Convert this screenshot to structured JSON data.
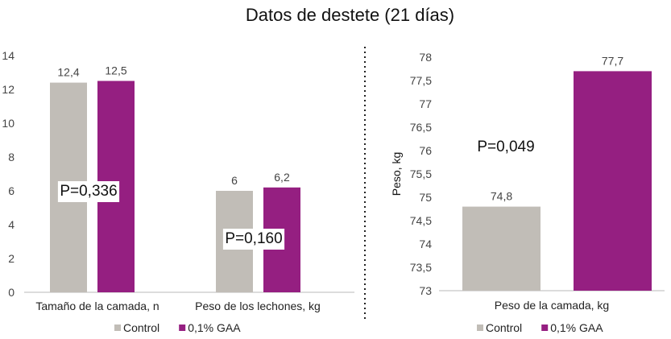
{
  "title": "Datos de destete (21 días)",
  "colors": {
    "control": "#c1bdb7",
    "gaa": "#951f81",
    "axis": "#b9b9b9",
    "divider": "#222222"
  },
  "chart_data": [
    {
      "type": "bar",
      "categories": [
        "Tamaño de la camada, n",
        "Peso de los lechones, kg"
      ],
      "series": [
        {
          "name": "Control",
          "values": [
            12.4,
            6
          ],
          "labels": [
            "12,4",
            "6"
          ]
        },
        {
          "name": "0,1% GAA",
          "values": [
            12.5,
            6.2
          ],
          "labels": [
            "12,5",
            "6,2"
          ]
        }
      ],
      "ylim": [
        0,
        14
      ],
      "yticks": [
        "0",
        "2",
        "4",
        "6",
        "8",
        "10",
        "12",
        "14"
      ],
      "annotations": [
        "P=0,336",
        "P=0,160"
      ],
      "legend": [
        "Control",
        "0,1% GAA"
      ],
      "legend_position": "bottom"
    },
    {
      "type": "bar",
      "categories": [
        "Peso de la camada, kg"
      ],
      "series": [
        {
          "name": "Control",
          "values": [
            74.8
          ],
          "labels": [
            "74,8"
          ]
        },
        {
          "name": "0,1% GAA",
          "values": [
            77.7
          ],
          "labels": [
            "77,7"
          ]
        }
      ],
      "ylabel": "Peso, kg",
      "ylim": [
        73,
        78
      ],
      "yticks": [
        "73",
        "73,5",
        "74",
        "74,5",
        "75",
        "75,5",
        "76",
        "76,5",
        "77",
        "77,5",
        "78"
      ],
      "annotations": [
        "P=0,049"
      ],
      "legend": [
        "Control",
        "0,1% GAA"
      ],
      "legend_position": "bottom"
    }
  ]
}
